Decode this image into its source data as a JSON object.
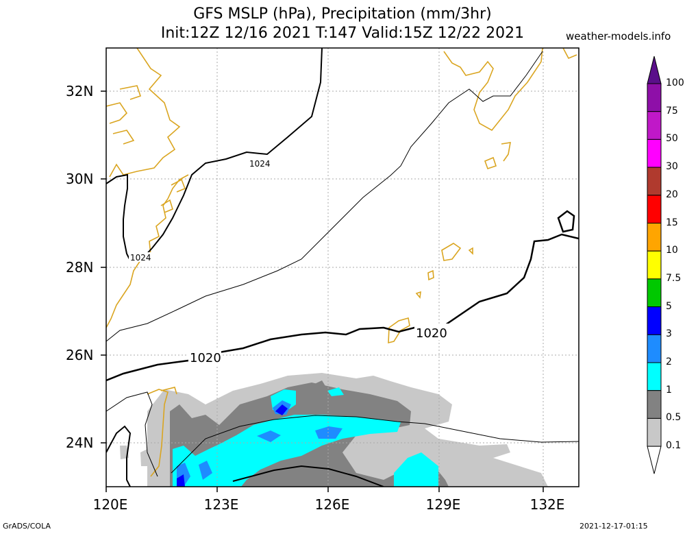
{
  "title_line1": "GFS MSLP (hPa), Precipitation (mm/3hr)",
  "title_line2": "Init:12Z 12/16 2021 T:147 Valid:15Z 12/22 2021",
  "site": "weather-models.info",
  "footer_left": "GrADS/COLA",
  "footer_right": "2021-12-17-01:15",
  "lat_labels": [
    "32N",
    "30N",
    "28N",
    "26N",
    "24N"
  ],
  "lon_labels": [
    "120E",
    "123E",
    "126E",
    "129E",
    "132E"
  ],
  "isobar_labels": [
    "1024",
    "1024",
    "1020",
    "1020"
  ],
  "colorbar": {
    "labels": [
      "100",
      "75",
      "50",
      "30",
      "20",
      "15",
      "10",
      "7.5",
      "5",
      "3",
      "2",
      "1",
      "0.5",
      "0.1"
    ],
    "colors": [
      "#5a0f8a",
      "#8e0fa8",
      "#c018c8",
      "#ff00ff",
      "#b03a2e",
      "#ff0000",
      "#ffa500",
      "#ffff00",
      "#00c800",
      "#0000ff",
      "#1e8cff",
      "#00ffff",
      "#828282",
      "#c8c8c8"
    ]
  },
  "colors": {
    "coast": "#daa520",
    "isobar": "#000000",
    "grid": "#aaaaaa"
  }
}
